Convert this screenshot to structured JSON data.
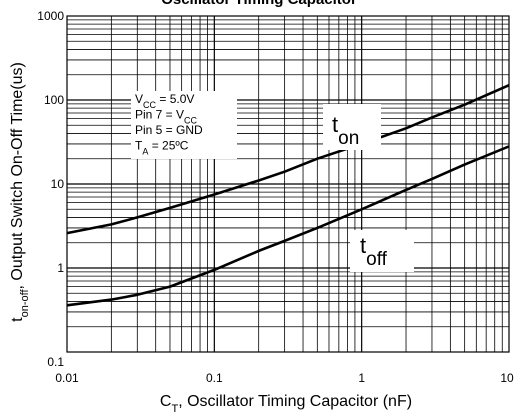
{
  "chart_data": {
    "type": "line",
    "title": "Oscillator Timing Capacitor",
    "xscale": "log",
    "yscale": "log",
    "xlim": [
      0.01,
      10
    ],
    "ylim": [
      0.1,
      1000
    ],
    "grid": true,
    "x_ticks": [
      "0.01",
      "0.1",
      "1",
      "10"
    ],
    "y_ticks": [
      "0.1",
      "1",
      "10",
      "100",
      "1000"
    ],
    "xlabel": {
      "pre": "C",
      "sub": "T",
      "post": ", Oscillator Timing Capacitor (nF)"
    },
    "ylabel": {
      "pre": "t",
      "sub": "on-off",
      "post": ", Output Switch On-Off Time(us)"
    },
    "conditions": [
      {
        "pre": "V",
        "sub": "CC",
        "post": " = 5.0V"
      },
      {
        "pre": "Pin 7 = V",
        "sub": "CC",
        "post": ""
      },
      {
        "pre": "Pin 5 = GND",
        "sub": "",
        "post": ""
      },
      {
        "pre": "T",
        "sub": "A",
        "post": " = 25ºC"
      }
    ],
    "series": [
      {
        "label_main": "t",
        "label_sub": "on",
        "x": [
          0.01,
          0.02,
          0.03,
          0.05,
          0.1,
          0.2,
          0.3,
          0.5,
          1,
          2,
          3,
          5,
          10
        ],
        "y": [
          2.6,
          3.3,
          4.0,
          5.2,
          7.5,
          11,
          14,
          20,
          30,
          46,
          62,
          88,
          150
        ]
      },
      {
        "label_main": "t",
        "label_sub": "off",
        "x": [
          0.01,
          0.02,
          0.03,
          0.05,
          0.1,
          0.2,
          0.3,
          0.5,
          1,
          2,
          3,
          5,
          10
        ],
        "y": [
          0.36,
          0.42,
          0.48,
          0.6,
          0.95,
          1.6,
          2.1,
          3.0,
          5.0,
          8.5,
          11.5,
          17,
          28
        ]
      }
    ]
  }
}
